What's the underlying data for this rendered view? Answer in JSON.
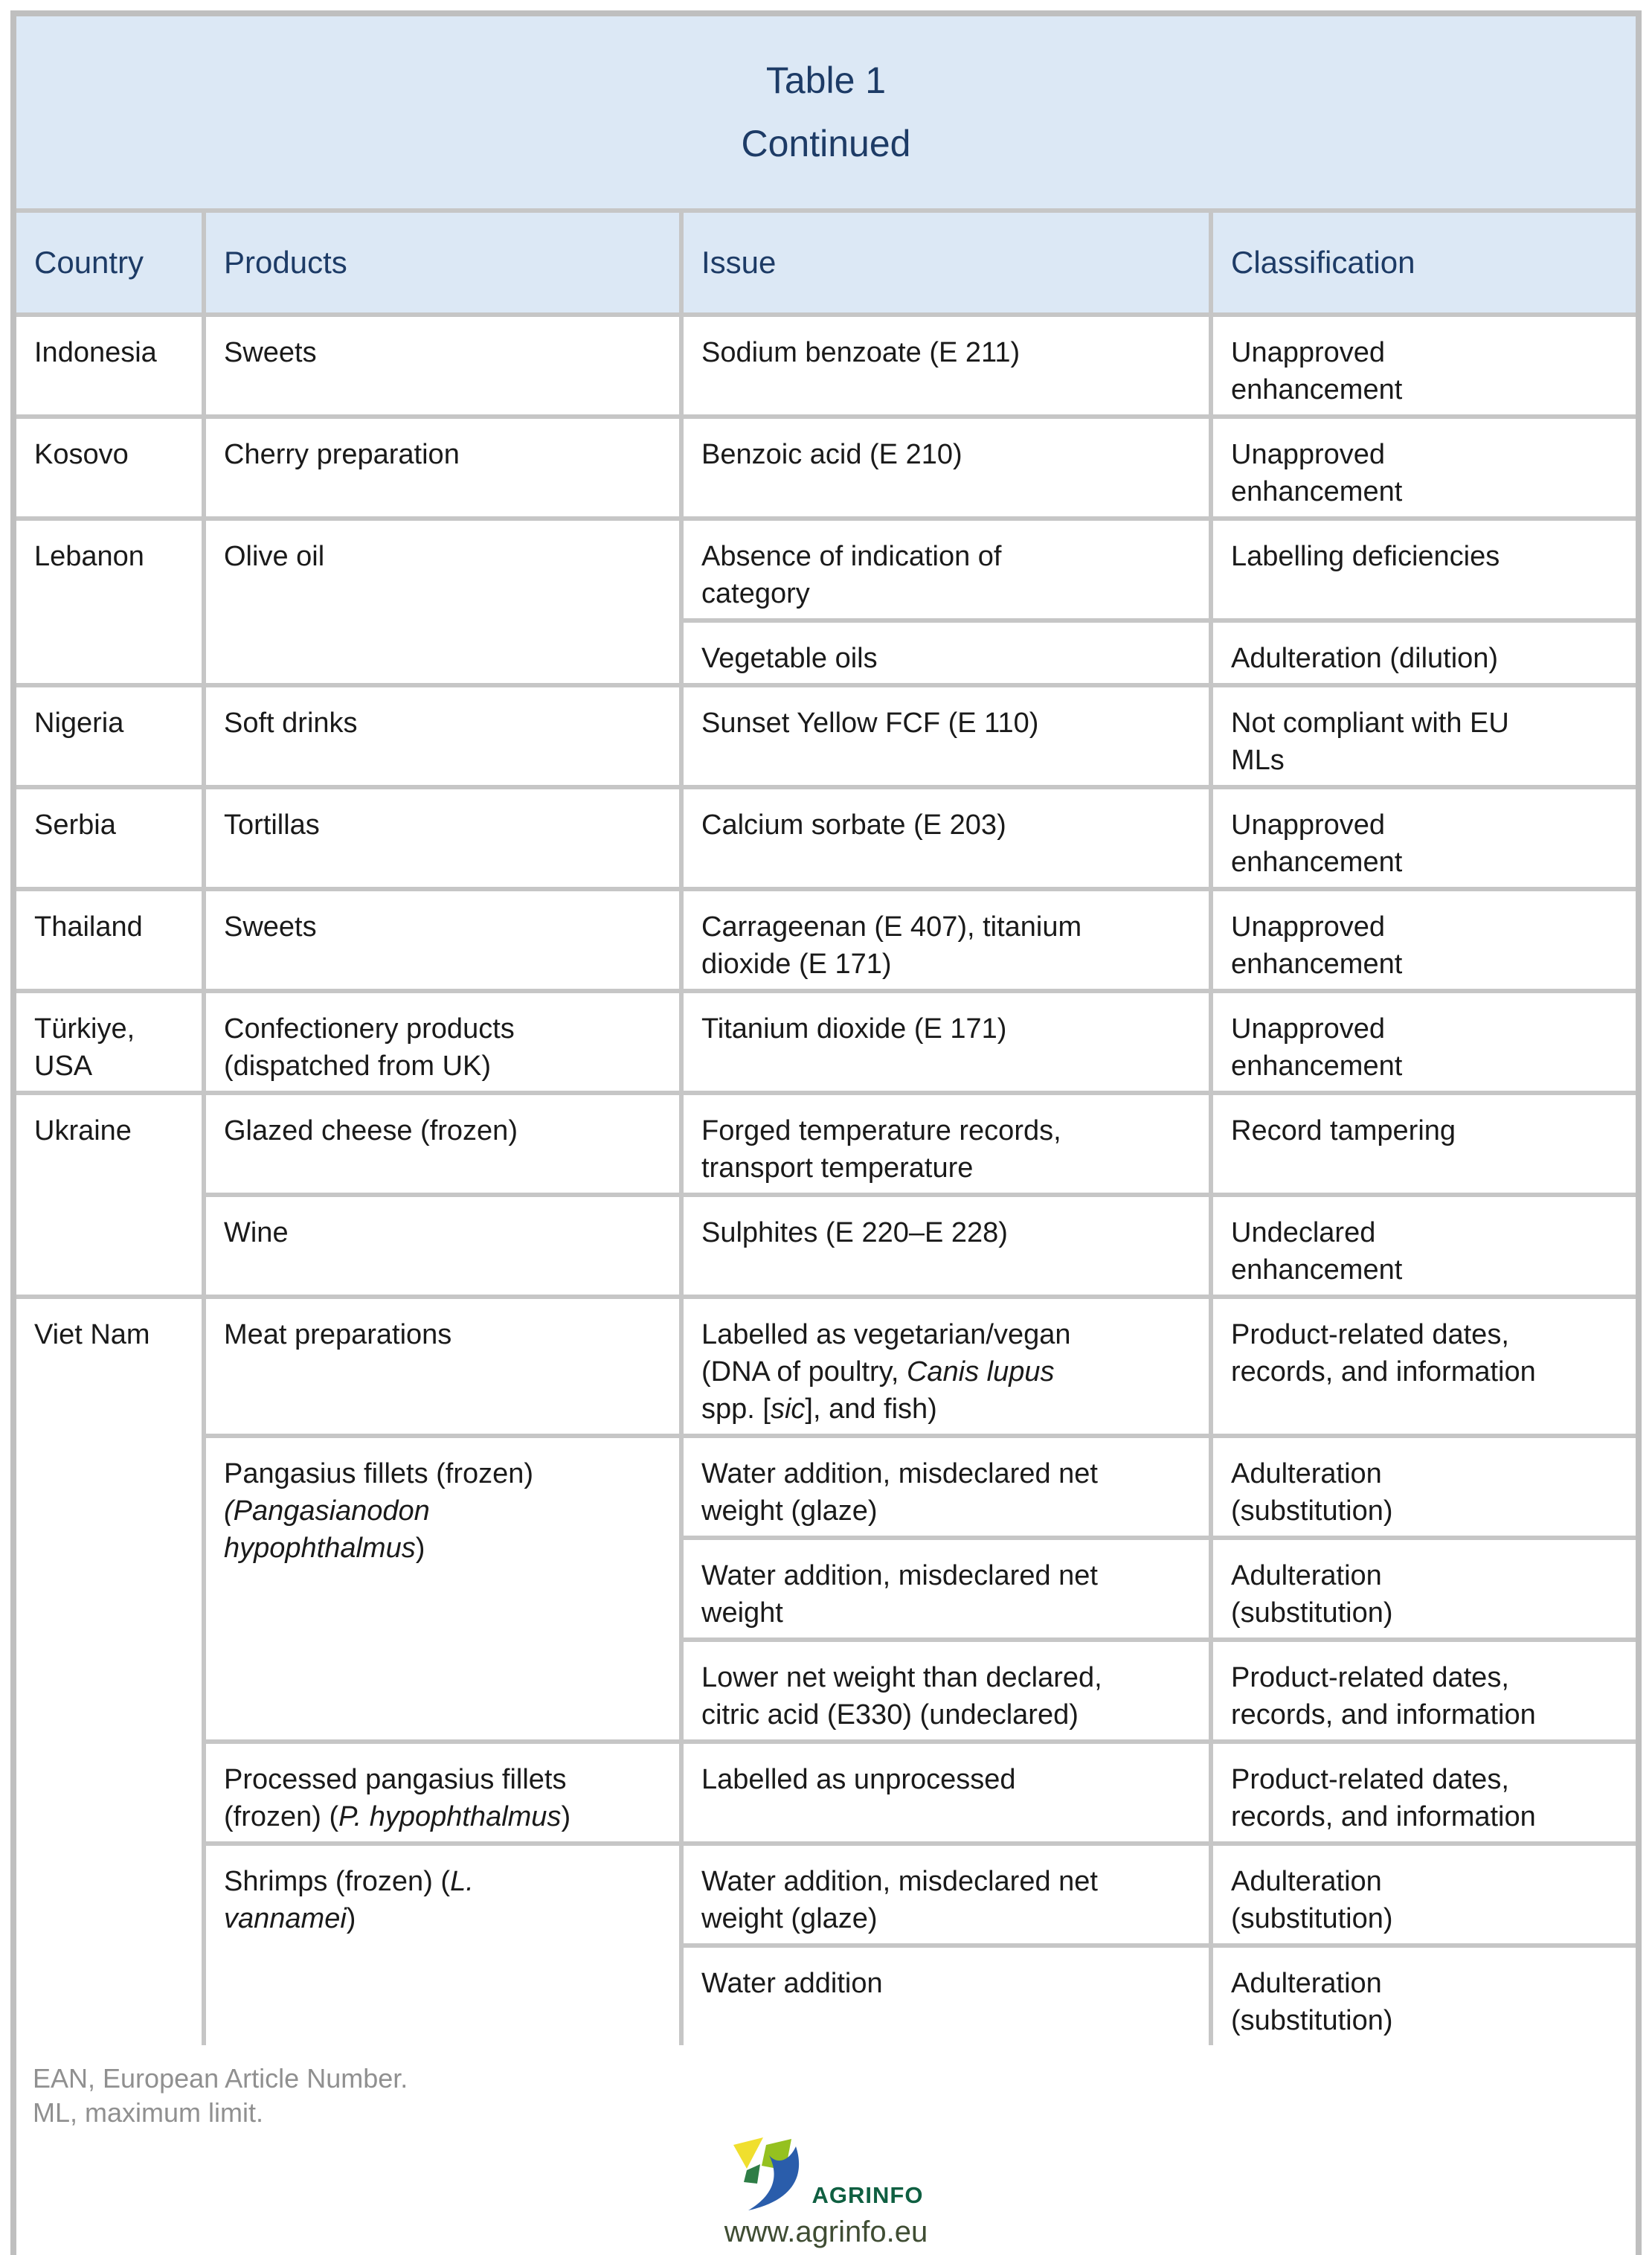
{
  "title": {
    "line1": "Table 1",
    "line2": "Continued"
  },
  "columns": [
    "Country",
    "Products",
    "Issue",
    "Classification"
  ],
  "body": [
    {
      "cells": [
        {
          "col": "country",
          "html": "Indonesia"
        },
        {
          "col": "products",
          "html": "Sweets"
        },
        {
          "col": "issue",
          "html": "Sodium benzoate (E 211)"
        },
        {
          "col": "classification",
          "html": "Unapproved<br>enhancement"
        }
      ]
    },
    {
      "cells": [
        {
          "col": "country",
          "html": "Kosovo"
        },
        {
          "col": "products",
          "html": "Cherry preparation"
        },
        {
          "col": "issue",
          "html": "Benzoic acid (E 210)"
        },
        {
          "col": "classification",
          "html": "Unapproved<br>enhancement"
        }
      ]
    },
    {
      "cells": [
        {
          "col": "country",
          "html": "Lebanon",
          "rowspan": 2
        },
        {
          "col": "products",
          "html": "Olive oil",
          "rowspan": 2
        },
        {
          "col": "issue",
          "html": "Absence of indication of<br>category"
        },
        {
          "col": "classification",
          "html": "Labelling deficiencies"
        }
      ]
    },
    {
      "cells": [
        {
          "col": "issue",
          "html": "Vegetable oils"
        },
        {
          "col": "classification",
          "html": "Adulteration (dilution)"
        }
      ]
    },
    {
      "cells": [
        {
          "col": "country",
          "html": "Nigeria"
        },
        {
          "col": "products",
          "html": "Soft drinks"
        },
        {
          "col": "issue",
          "html": "Sunset Yellow FCF (E 110)"
        },
        {
          "col": "classification",
          "html": "Not compliant with EU<br>MLs"
        }
      ]
    },
    {
      "cells": [
        {
          "col": "country",
          "html": "Serbia"
        },
        {
          "col": "products",
          "html": "Tortillas"
        },
        {
          "col": "issue",
          "html": "Calcium sorbate (E 203)"
        },
        {
          "col": "classification",
          "html": "Unapproved<br>enhancement"
        }
      ]
    },
    {
      "cells": [
        {
          "col": "country",
          "html": "Thailand"
        },
        {
          "col": "products",
          "html": "Sweets"
        },
        {
          "col": "issue",
          "html": "Carrageenan (E 407), titanium<br>dioxide (E 171)"
        },
        {
          "col": "classification",
          "html": "Unapproved<br>enhancement"
        }
      ]
    },
    {
      "cells": [
        {
          "col": "country",
          "html": "Türkiye,<br>USA"
        },
        {
          "col": "products",
          "html": "Confectionery products<br>(dispatched from UK)"
        },
        {
          "col": "issue",
          "html": "Titanium dioxide (E 171)"
        },
        {
          "col": "classification",
          "html": "Unapproved<br>enhancement"
        }
      ]
    },
    {
      "cells": [
        {
          "col": "country",
          "html": "Ukraine",
          "rowspan": 2
        },
        {
          "col": "products",
          "html": "Glazed cheese (frozen)"
        },
        {
          "col": "issue",
          "html": "Forged temperature records,<br>transport temperature"
        },
        {
          "col": "classification",
          "html": "Record tampering"
        }
      ]
    },
    {
      "cells": [
        {
          "col": "products",
          "html": "Wine"
        },
        {
          "col": "issue",
          "html": "Sulphites (E 220–E 228)"
        },
        {
          "col": "classification",
          "html": "Undeclared<br>enhancement"
        }
      ]
    },
    {
      "cells": [
        {
          "col": "country",
          "html": "Viet Nam",
          "rowspan": 7
        },
        {
          "col": "products",
          "html": "Meat preparations"
        },
        {
          "col": "issue",
          "html": "Labelled as vegetarian/vegan<br>(DNA of poultry, <i>Canis lupus</i><br>spp. [<i>sic</i>], and fish)"
        },
        {
          "col": "classification",
          "html": "Product-related dates,<br>records, and information"
        }
      ]
    },
    {
      "cells": [
        {
          "col": "products",
          "html": "Pangasius fillets (frozen)<br><i>(Pangasianodon</i><br><i>hypophthalmus</i>)",
          "rowspan": 3
        },
        {
          "col": "issue",
          "html": "Water addition, misdeclared net<br>weight (glaze)"
        },
        {
          "col": "classification",
          "html": "Adulteration<br>(substitution)"
        }
      ]
    },
    {
      "cells": [
        {
          "col": "issue",
          "html": "Water addition, misdeclared net<br>weight"
        },
        {
          "col": "classification",
          "html": "Adulteration<br>(substitution)"
        }
      ]
    },
    {
      "cells": [
        {
          "col": "issue",
          "html": "Lower net weight than declared,<br>citric acid (E330) (undeclared)"
        },
        {
          "col": "classification",
          "html": "Product-related dates,<br>records, and information"
        }
      ]
    },
    {
      "cells": [
        {
          "col": "products",
          "html": "Processed pangasius fillets<br>(frozen) (<i>P. hypophthalmus</i>)"
        },
        {
          "col": "issue",
          "html": "Labelled as unprocessed"
        },
        {
          "col": "classification",
          "html": "Product-related dates,<br>records, and information"
        }
      ]
    },
    {
      "cells": [
        {
          "col": "products",
          "html": "Shrimps (frozen) (<i>L.</i><br><i>vannamei</i>)",
          "rowspan": 2
        },
        {
          "col": "issue",
          "html": "Water addition, misdeclared net<br>weight (glaze)"
        },
        {
          "col": "classification",
          "html": "Adulteration<br>(substitution)"
        }
      ]
    },
    {
      "cells": [
        {
          "col": "issue",
          "html": "Water addition"
        },
        {
          "col": "classification",
          "html": "Adulteration<br>(substitution)"
        }
      ]
    }
  ],
  "footnotes": [
    "EAN, European Article Number.",
    "ML, maximum limit."
  ],
  "logo": {
    "wordmark": "AGRINFO",
    "url": "www.agrinfo.eu"
  },
  "colors": {
    "header_bg": "#dce8f5",
    "header_text": "#1d3b66",
    "grid": "#c6c6c6",
    "body_text": "#1a1a1a",
    "footnote_gray": "#909090",
    "logo_green_text": "#0f5f41",
    "url_text": "#3f4d33",
    "logo_yellow": "#f0df2e",
    "logo_light_green": "#95c11f",
    "logo_dark_green": "#2e7d46",
    "logo_blue": "#2a5dab"
  }
}
